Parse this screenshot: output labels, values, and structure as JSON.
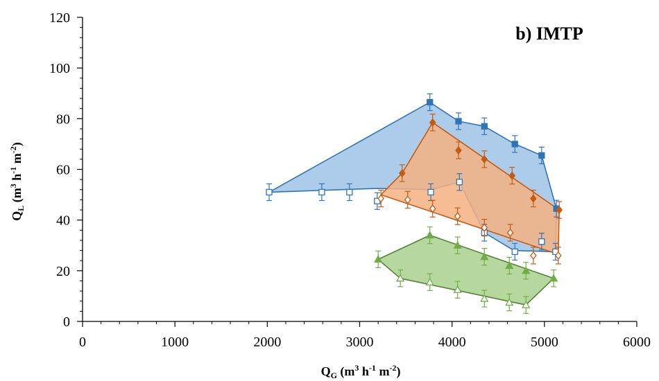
{
  "chart_data": {
    "type": "scatter",
    "title": "",
    "annotation": "b) IMTP",
    "xlabel": {
      "main": "Q",
      "sub": "G",
      "units": " (m",
      "sup1": "3",
      "mid": " h",
      "sup2": "-1",
      "mid2": " m",
      "sup3": "-2",
      "end": ")"
    },
    "ylabel": {
      "main": "Q",
      "sub": "L",
      "units": " (m",
      "sup1": "3",
      "mid": " h",
      "sup2": "-1",
      "mid2": " m",
      "sup3": "-2",
      "end": ")"
    },
    "xlim": [
      0,
      6000
    ],
    "ylim": [
      0,
      120
    ],
    "x_ticks": [
      0,
      1000,
      2000,
      3000,
      4000,
      5000,
      6000
    ],
    "y_ticks": [
      0,
      20,
      40,
      60,
      80,
      100,
      120
    ],
    "x_ticks_labels": [
      "0",
      "1000",
      "2000",
      "3000",
      "4000",
      "5000",
      "6000"
    ],
    "y_ticks_labels": [
      "0",
      "20",
      "40",
      "60",
      "80",
      "100",
      "120"
    ],
    "grid": false,
    "regions": [
      {
        "color": "#2e75b6",
        "fill": "#9dc3e6",
        "polygon": [
          [
            2020,
            51
          ],
          [
            3760,
            86.5
          ],
          [
            4070,
            79
          ],
          [
            4350,
            77
          ],
          [
            4680,
            70
          ],
          [
            4970,
            65.5
          ],
          [
            5130,
            44.5
          ],
          [
            5120,
            27.5
          ],
          [
            4670,
            28
          ],
          [
            4350,
            35
          ],
          [
            4080,
            55
          ],
          [
            3770,
            52
          ],
          [
            3200,
            52.5
          ],
          [
            2020,
            51
          ]
        ]
      },
      {
        "color": "#c55a11",
        "fill": "#f4b183",
        "polygon": [
          [
            3230,
            50
          ],
          [
            3460,
            58.5
          ],
          [
            3790,
            78.5
          ],
          [
            5160,
            44
          ],
          [
            5150,
            26.5
          ],
          [
            3230,
            50
          ]
        ]
      },
      {
        "color": "#548235",
        "fill": "#a9d18e",
        "polygon": [
          [
            3200,
            24.5
          ],
          [
            3760,
            34
          ],
          [
            5100,
            17
          ],
          [
            4800,
            6.5
          ],
          [
            3440,
            17
          ],
          [
            3200,
            24.5
          ]
        ]
      }
    ],
    "series": [
      {
        "marker": "square-filled",
        "color": "#2e75b6",
        "x": [
          3760,
          4070,
          4350,
          4680,
          4970,
          5130
        ],
        "y": [
          86.5,
          79,
          77,
          70,
          65.5,
          44.5
        ],
        "err": [
          3.3,
          3.3,
          3.3,
          3.3,
          3.3,
          3.3
        ]
      },
      {
        "marker": "square-open",
        "color": "#2e75b6",
        "x": [
          2020,
          2590,
          2890,
          3190,
          3770,
          4080,
          4350,
          4680,
          4970,
          5120
        ],
        "y": [
          51,
          51,
          51,
          47.5,
          51,
          55,
          35,
          27.5,
          31.5,
          27.5
        ],
        "err": [
          3.3,
          3.3,
          3.3,
          3.3,
          3.3,
          3.3,
          3.3,
          3.3,
          3.3,
          3.3
        ]
      },
      {
        "marker": "diamond-filled",
        "color": "#c55a11",
        "x": [
          3460,
          3790,
          4070,
          4350,
          4650,
          4880,
          5160
        ],
        "y": [
          58.5,
          78.5,
          67.5,
          64,
          57.5,
          48.5,
          44
        ],
        "err": [
          3.3,
          3.3,
          3.3,
          3.3,
          3.3,
          3.3,
          3.3
        ]
      },
      {
        "marker": "diamond-open",
        "color": "#c55a11",
        "x": [
          3230,
          3520,
          3790,
          4060,
          4350,
          4630,
          4880,
          5150
        ],
        "y": [
          48.5,
          48,
          44.5,
          41.5,
          37,
          35,
          26,
          26
        ],
        "err": [
          3.3,
          3.3,
          3.3,
          3.3,
          3.3,
          3.3,
          3.3,
          3.3
        ]
      },
      {
        "marker": "triangle-filled",
        "color": "#70ad47",
        "x": [
          3200,
          3760,
          4060,
          4350,
          4620,
          4800,
          5100
        ],
        "y": [
          24.5,
          34,
          30,
          25.5,
          22,
          20,
          17
        ],
        "err": [
          3.3,
          3.3,
          3.3,
          3.3,
          3.3,
          3.3,
          3.3
        ]
      },
      {
        "marker": "triangle-open",
        "color": "#70ad47",
        "x": [
          3440,
          3760,
          4060,
          4350,
          4620,
          4800
        ],
        "y": [
          17,
          15.5,
          12.5,
          9,
          7.5,
          6.5
        ],
        "err": [
          3.3,
          3.3,
          3.3,
          3.3,
          3.3,
          3.3
        ]
      }
    ]
  }
}
